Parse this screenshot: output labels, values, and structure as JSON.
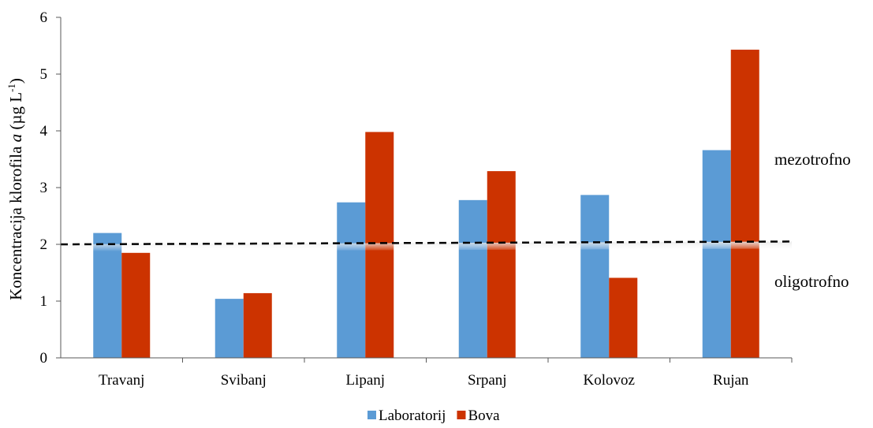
{
  "chart_data": {
    "type": "bar",
    "categories": [
      "Travanj",
      "Svibanj",
      "Lipanj",
      "Srpanj",
      "Kolovoz",
      "Rujan"
    ],
    "series": [
      {
        "name": "Laboratorij",
        "color": "#5b9bd5",
        "values": [
          2.2,
          1.04,
          2.74,
          2.78,
          2.87,
          3.66
        ]
      },
      {
        "name": "Bova",
        "color": "#cc3300",
        "values": [
          1.85,
          1.14,
          3.98,
          3.29,
          1.41,
          5.43
        ]
      }
    ],
    "ylim": [
      0,
      6
    ],
    "yticks": [
      0,
      1,
      2,
      3,
      4,
      5,
      6
    ],
    "ylabel": {
      "prefix": "Koncentracija klorofila ",
      "italic": "a",
      "unit_open": " (µg L",
      "superscript": "-1",
      "unit_close": ")"
    },
    "xlabel": "",
    "threshold": {
      "y_start": 2.0,
      "y_end": 2.05,
      "style": "dashed",
      "color": "#000000"
    },
    "annotations": {
      "upper": "mezotrofno",
      "lower": "oligotrofno"
    },
    "legend_position": "bottom-center",
    "grid": false
  }
}
